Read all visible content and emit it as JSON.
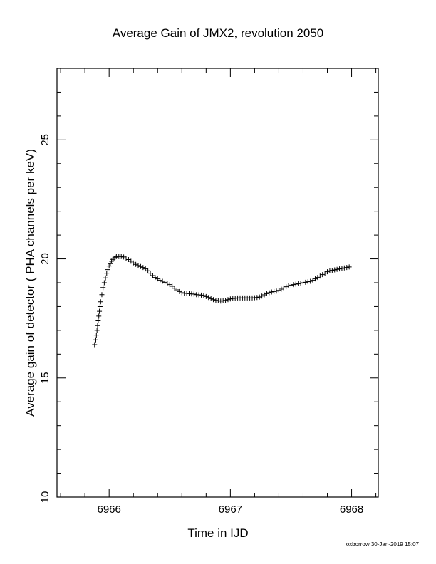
{
  "footer": "oxborrow 30-Jan-2019 15:07",
  "chart_data": {
    "type": "scatter",
    "title": "Average Gain of JMX2, revolution 2050",
    "xlabel": "Time in IJD",
    "ylabel": "Average gain of detector ( PHA channels per keV)",
    "xlim": [
      6965.57,
      6968.22
    ],
    "ylim": [
      10,
      28
    ],
    "xticks": [
      6966,
      6967,
      6968
    ],
    "xtick_labels": [
      "6966",
      "6967",
      "6968"
    ],
    "yticks": [
      10,
      15,
      20,
      25
    ],
    "ytick_labels": [
      "10",
      "15",
      "20",
      "25"
    ],
    "marker": "plus",
    "grid": false,
    "x": [
      6965.88,
      6965.89,
      6965.895,
      6965.9,
      6965.905,
      6965.91,
      6965.915,
      6965.92,
      6965.925,
      6965.93,
      6965.94,
      6965.95,
      6965.96,
      6965.97,
      6965.98,
      6965.99,
      6966.0,
      6966.01,
      6966.02,
      6966.03,
      6966.04,
      6966.05,
      6966.06,
      6966.08,
      6966.1,
      6966.12,
      6966.14,
      6966.16,
      6966.18,
      6966.2,
      6966.22,
      6966.24,
      6966.26,
      6966.28,
      6966.3,
      6966.32,
      6966.34,
      6966.36,
      6966.38,
      6966.4,
      6966.42,
      6966.44,
      6966.46,
      6966.48,
      6966.5,
      6966.52,
      6966.54,
      6966.56,
      6966.58,
      6966.6,
      6966.62,
      6966.64,
      6966.66,
      6966.68,
      6966.7,
      6966.72,
      6966.74,
      6966.76,
      6966.78,
      6966.8,
      6966.82,
      6966.84,
      6966.86,
      6966.88,
      6966.9,
      6966.92,
      6966.94,
      6966.96,
      6966.98,
      6967.0,
      6967.02,
      6967.04,
      6967.06,
      6967.08,
      6967.1,
      6967.12,
      6967.14,
      6967.16,
      6967.18,
      6967.2,
      6967.22,
      6967.24,
      6967.26,
      6967.28,
      6967.3,
      6967.32,
      6967.34,
      6967.36,
      6967.38,
      6967.4,
      6967.42,
      6967.44,
      6967.46,
      6967.48,
      6967.5,
      6967.52,
      6967.54,
      6967.56,
      6967.58,
      6967.6,
      6967.62,
      6967.64,
      6967.66,
      6967.68,
      6967.7,
      6967.72,
      6967.74,
      6967.76,
      6967.78,
      6967.8,
      6967.82,
      6967.84,
      6967.86,
      6967.88,
      6967.9,
      6967.92,
      6967.94,
      6967.96,
      6967.98
    ],
    "y": [
      16.4,
      16.6,
      16.8,
      17.0,
      17.2,
      17.4,
      17.6,
      17.8,
      18.0,
      18.2,
      18.5,
      18.8,
      19.0,
      19.2,
      19.4,
      19.55,
      19.7,
      19.8,
      19.9,
      19.98,
      20.03,
      20.07,
      20.1,
      20.1,
      20.1,
      20.08,
      20.03,
      19.97,
      19.9,
      19.83,
      19.77,
      19.72,
      19.68,
      19.64,
      19.58,
      19.5,
      19.4,
      19.3,
      19.22,
      19.16,
      19.1,
      19.06,
      19.02,
      18.98,
      18.92,
      18.85,
      18.77,
      18.7,
      18.63,
      18.58,
      18.56,
      18.55,
      18.54,
      18.53,
      18.52,
      18.5,
      18.49,
      18.48,
      18.46,
      18.42,
      18.38,
      18.33,
      18.29,
      18.26,
      18.24,
      18.23,
      18.24,
      18.26,
      18.29,
      18.32,
      18.34,
      18.35,
      18.36,
      18.36,
      18.36,
      18.36,
      18.36,
      18.36,
      18.36,
      18.37,
      18.38,
      18.4,
      18.44,
      18.49,
      18.54,
      18.58,
      18.61,
      18.63,
      18.65,
      18.68,
      18.73,
      18.78,
      18.83,
      18.87,
      18.9,
      18.92,
      18.94,
      18.96,
      18.98,
      19.0,
      19.02,
      19.04,
      19.06,
      19.1,
      19.16,
      19.22,
      19.28,
      19.34,
      19.4,
      19.46,
      19.5,
      19.52,
      19.54,
      19.56,
      19.58,
      19.6,
      19.62,
      19.64,
      19.66
    ]
  }
}
